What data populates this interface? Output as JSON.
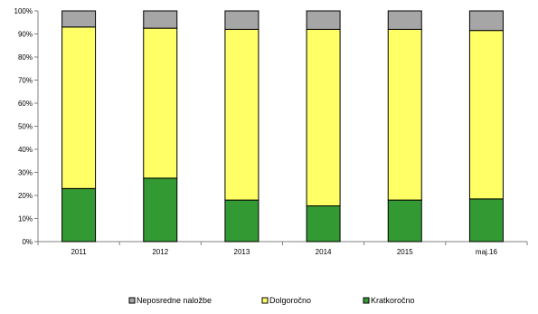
{
  "chart_data": {
    "type": "bar",
    "stacked": true,
    "categories": [
      "2011",
      "2012",
      "2013",
      "2014",
      "2015",
      "maj.16"
    ],
    "series": [
      {
        "name": "Kratkoročno",
        "color": "#339933",
        "values": [
          23,
          27.5,
          18,
          15.5,
          18,
          18.5
        ]
      },
      {
        "name": "Dolgoročno",
        "color": "#ffff66",
        "values": [
          70,
          65,
          74,
          76.5,
          74,
          73
        ]
      },
      {
        "name": "Neposredne naložbe",
        "color": "#a6a6a6",
        "values": [
          7,
          7.5,
          8,
          8,
          8,
          8.5
        ]
      }
    ],
    "y_ticks": [
      "0%",
      "10%",
      "20%",
      "30%",
      "40%",
      "50%",
      "60%",
      "70%",
      "80%",
      "90%",
      "100%"
    ],
    "ylim": [
      0,
      100
    ],
    "grid": false,
    "legend": {
      "placement": "bottom",
      "order": [
        "Neposredne naložbe",
        "Dolgoročno",
        "Kratkoročno"
      ]
    },
    "title": "",
    "xlabel": "",
    "ylabel": ""
  }
}
